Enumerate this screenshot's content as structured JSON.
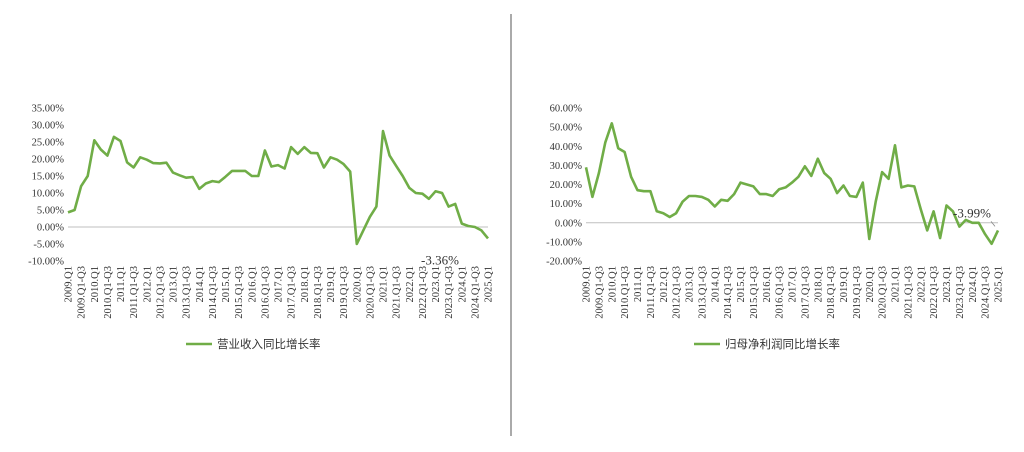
{
  "colors": {
    "series": "#70ad47",
    "axis": "#bfbfbf",
    "divider": "#555555",
    "text": "#333333"
  },
  "chart_data": [
    {
      "type": "line",
      "title": "",
      "xlabel": "",
      "ylabel": "",
      "ylim": [
        -10,
        35
      ],
      "y_ticks": [
        "35.00%",
        "30.00%",
        "25.00%",
        "20.00%",
        "15.00%",
        "10.00%",
        "5.00%",
        "0.00%",
        "-5.00%",
        "-10.00%"
      ],
      "x_labels": [
        "2009.Q1",
        "2009.Q1-Q3",
        "2010.Q1",
        "2010.Q1-Q3",
        "2011.Q1",
        "2011.Q1-Q3",
        "2012.Q1",
        "2012.Q1-Q3",
        "2013.Q1",
        "2013.Q1-Q3",
        "2014.Q1",
        "2014.Q1-Q3",
        "2015.Q1",
        "2015.Q1-Q3",
        "2016.Q1",
        "2016.Q1-Q3",
        "2017.Q1",
        "2017.Q1-Q3",
        "2018.Q1",
        "2018.Q1-Q3",
        "2019.Q1",
        "2019.Q1-Q3",
        "2020.Q1",
        "2020.Q1-Q3",
        "2021.Q1",
        "2021.Q1-Q3",
        "2022.Q1",
        "2022.Q1-Q3",
        "2023.Q1",
        "2023.Q1-Q3",
        "2024.Q1",
        "2024.Q1-Q3",
        "2025.Q1"
      ],
      "grid": false,
      "legend": "bottom",
      "series": [
        {
          "name": "营业收入同比增长率",
          "values": [
            4.3,
            5.0,
            12.0,
            15.0,
            25.5,
            22.8,
            21.0,
            26.5,
            25.3,
            19.0,
            17.5,
            20.5,
            19.8,
            18.8,
            18.7,
            18.9,
            16.0,
            15.2,
            14.5,
            14.7,
            11.2,
            12.8,
            13.5,
            13.2,
            14.8,
            16.5,
            16.5,
            16.5,
            15.0,
            15.0,
            22.5,
            17.8,
            18.2,
            17.2,
            23.5,
            21.5,
            23.5,
            21.8,
            21.7,
            17.5,
            20.5,
            19.8,
            18.5,
            16.3,
            -5.0,
            -1.0,
            3.0,
            6.0,
            28.2,
            21.0,
            18.0,
            15.0,
            11.5,
            10.0,
            9.8,
            8.3,
            10.5,
            10.0,
            6.0,
            6.8,
            1.0,
            0.3,
            0.0,
            -1.0,
            -3.36
          ],
          "end_label": "-3.36%"
        }
      ]
    },
    {
      "type": "line",
      "title": "",
      "xlabel": "",
      "ylabel": "",
      "ylim": [
        -20,
        60
      ],
      "y_ticks": [
        "60.00%",
        "50.00%",
        "40.00%",
        "30.00%",
        "20.00%",
        "10.00%",
        "0.00%",
        "-10.00%",
        "-20.00%"
      ],
      "x_labels": [
        "2009.Q1",
        "2009.Q1-Q3",
        "2010.Q1",
        "2010.Q1-Q3",
        "2011.Q1",
        "2011.Q1-Q3",
        "2012.Q1",
        "2012.Q1-Q3",
        "2013.Q1",
        "2013.Q1-Q3",
        "2014.Q1",
        "2014.Q1-Q3",
        "2015.Q1",
        "2015.Q1-Q3",
        "2016.Q1",
        "2016.Q1-Q3",
        "2017.Q1",
        "2017.Q1-Q3",
        "2018.Q1",
        "2018.Q1-Q3",
        "2019.Q1",
        "2019.Q1-Q3",
        "2020.Q1",
        "2020.Q1-Q3",
        "2021.Q1",
        "2021.Q1-Q3",
        "2022.Q1",
        "2022.Q1-Q3",
        "2023.Q1",
        "2023.Q1-Q3",
        "2024.Q1",
        "2024.Q1-Q3",
        "2025.Q1"
      ],
      "grid": false,
      "legend": "bottom",
      "series": [
        {
          "name": "归母净利润同比增长率",
          "values": [
            29.0,
            13.5,
            26.0,
            42.0,
            52.0,
            39.0,
            37.0,
            24.0,
            17.0,
            16.5,
            16.5,
            6.0,
            5.0,
            3.0,
            5.0,
            11.0,
            14.0,
            14.0,
            13.5,
            12.0,
            8.5,
            12.0,
            11.5,
            15.0,
            21.0,
            20.0,
            19.0,
            15.0,
            15.0,
            14.0,
            17.5,
            18.5,
            21.0,
            24.0,
            29.5,
            24.5,
            33.5,
            26.0,
            23.0,
            15.5,
            19.5,
            14.0,
            13.5,
            21.0,
            -8.5,
            11.0,
            26.5,
            23.0,
            40.5,
            18.5,
            19.5,
            19.0,
            7.0,
            -4.0,
            6.0,
            -8.0,
            9.0,
            6.0,
            -2.0,
            1.5,
            0.0,
            0.0,
            -6.0,
            -11.0,
            -3.99
          ],
          "end_label": "-3.99%"
        }
      ]
    }
  ]
}
